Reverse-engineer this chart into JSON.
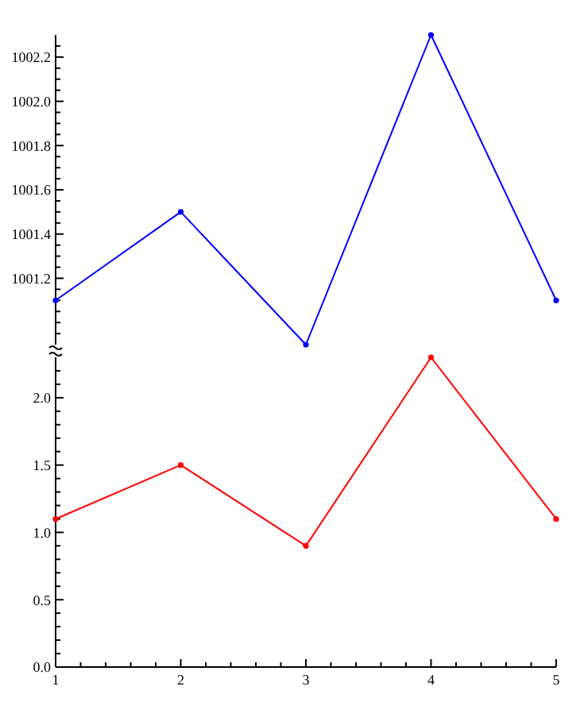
{
  "chart_data": [
    {
      "type": "line",
      "x": [
        1,
        2,
        3,
        4,
        5
      ],
      "xlim": [
        1,
        5
      ],
      "ylim": [
        1000.9,
        1002.3
      ],
      "tick_labels": "y",
      "marker": "circle",
      "grid": false,
      "yticks": [
        {
          "value": 1000.95,
          "label": null
        },
        1001.2,
        {
          "value": 1001.0,
          "label": null
        },
        {
          "value": 1001.05,
          "label": null
        },
        {
          "value": 1001.1,
          "label": null
        },
        {
          "value": 1001.15,
          "label": null
        },
        {
          "value": 1001.25,
          "label": null
        },
        {
          "value": 1001.3,
          "label": null
        },
        {
          "value": 1001.35,
          "label": null
        },
        {
          "value": 1001.4,
          "label": "1001.4"
        },
        {
          "value": 1001.45,
          "label": null
        },
        {
          "value": 1001.5,
          "label": null
        },
        {
          "value": 1001.55,
          "label": null
        },
        {
          "value": 1001.6,
          "label": "1001.6"
        },
        {
          "value": 1001.65,
          "label": null
        },
        {
          "value": 1001.7,
          "label": null
        },
        {
          "value": 1001.75,
          "label": null
        },
        {
          "value": 1001.8,
          "label": "1001.8"
        },
        {
          "value": 1001.85,
          "label": null
        },
        {
          "value": 1001.9,
          "label": null
        },
        {
          "value": 1001.95,
          "label": null
        },
        {
          "value": 1002.0,
          "label": "1002.0"
        },
        {
          "value": 1002.05,
          "label": null
        },
        {
          "value": 1002.1,
          "label": null
        },
        {
          "value": 1002.15,
          "label": null
        },
        {
          "value": 1002.2,
          "label": "1002.2"
        },
        {
          "value": 1002.25,
          "label": null
        }
      ],
      "series": [
        {
          "color": "#0000ff",
          "values": [
            1001.1,
            1001.5,
            1000.9,
            1002.3,
            1001.1
          ]
        }
      ]
    },
    {
      "type": "line",
      "x": [
        1,
        2,
        3,
        4,
        5
      ],
      "xlim": [
        1,
        5
      ],
      "ylim": [
        0,
        2.3
      ],
      "marker": "circle",
      "grid": false,
      "xticks": [
        1,
        {
          "value": 1.2,
          "label": null
        },
        {
          "value": 1.4,
          "label": null
        },
        {
          "value": 1.6,
          "label": null
        },
        {
          "value": 1.8,
          "label": null
        },
        2,
        {
          "value": 2.2,
          "label": null
        },
        {
          "value": 2.4,
          "label": null
        },
        {
          "value": 2.6,
          "label": null
        },
        {
          "value": 2.8,
          "label": null
        },
        3,
        {
          "value": 3.2,
          "label": null
        },
        {
          "value": 3.4,
          "label": null
        },
        {
          "value": 3.6,
          "label": null
        },
        {
          "value": 3.8,
          "label": null
        },
        4,
        {
          "value": 4.2,
          "label": null
        },
        {
          "value": 4.4,
          "label": null
        },
        {
          "value": 4.6,
          "label": null
        },
        {
          "value": 4.8,
          "label": null
        },
        5
      ],
      "yticks": [
        {
          "value": 0,
          "label": "0.0"
        },
        {
          "value": 0.1,
          "label": null
        },
        {
          "value": 0.2,
          "label": null
        },
        {
          "value": 0.3,
          "label": null
        },
        {
          "value": 0.4,
          "label": null
        },
        0.5,
        {
          "value": 0.6,
          "label": null
        },
        {
          "value": 0.7,
          "label": null
        },
        {
          "value": 0.8,
          "label": null
        },
        {
          "value": 0.9,
          "label": null
        },
        {
          "value": 1,
          "label": "1.0"
        },
        {
          "value": 1.1,
          "label": null
        },
        {
          "value": 1.2,
          "label": null
        },
        {
          "value": 1.3,
          "label": null
        },
        {
          "value": 1.4,
          "label": null
        },
        1.5,
        {
          "value": 1.6,
          "label": null
        },
        {
          "value": 1.7,
          "label": null
        },
        {
          "value": 1.8,
          "label": null
        },
        {
          "value": 1.9,
          "label": null
        },
        {
          "value": 2,
          "label": "2.0"
        },
        {
          "value": 2.1,
          "label": null
        },
        {
          "value": 2.2,
          "label": null
        }
      ],
      "series": [
        {
          "color": "#ff0000",
          "values": [
            1.1,
            1.5,
            0.9,
            2.3,
            1.1
          ]
        }
      ]
    }
  ]
}
